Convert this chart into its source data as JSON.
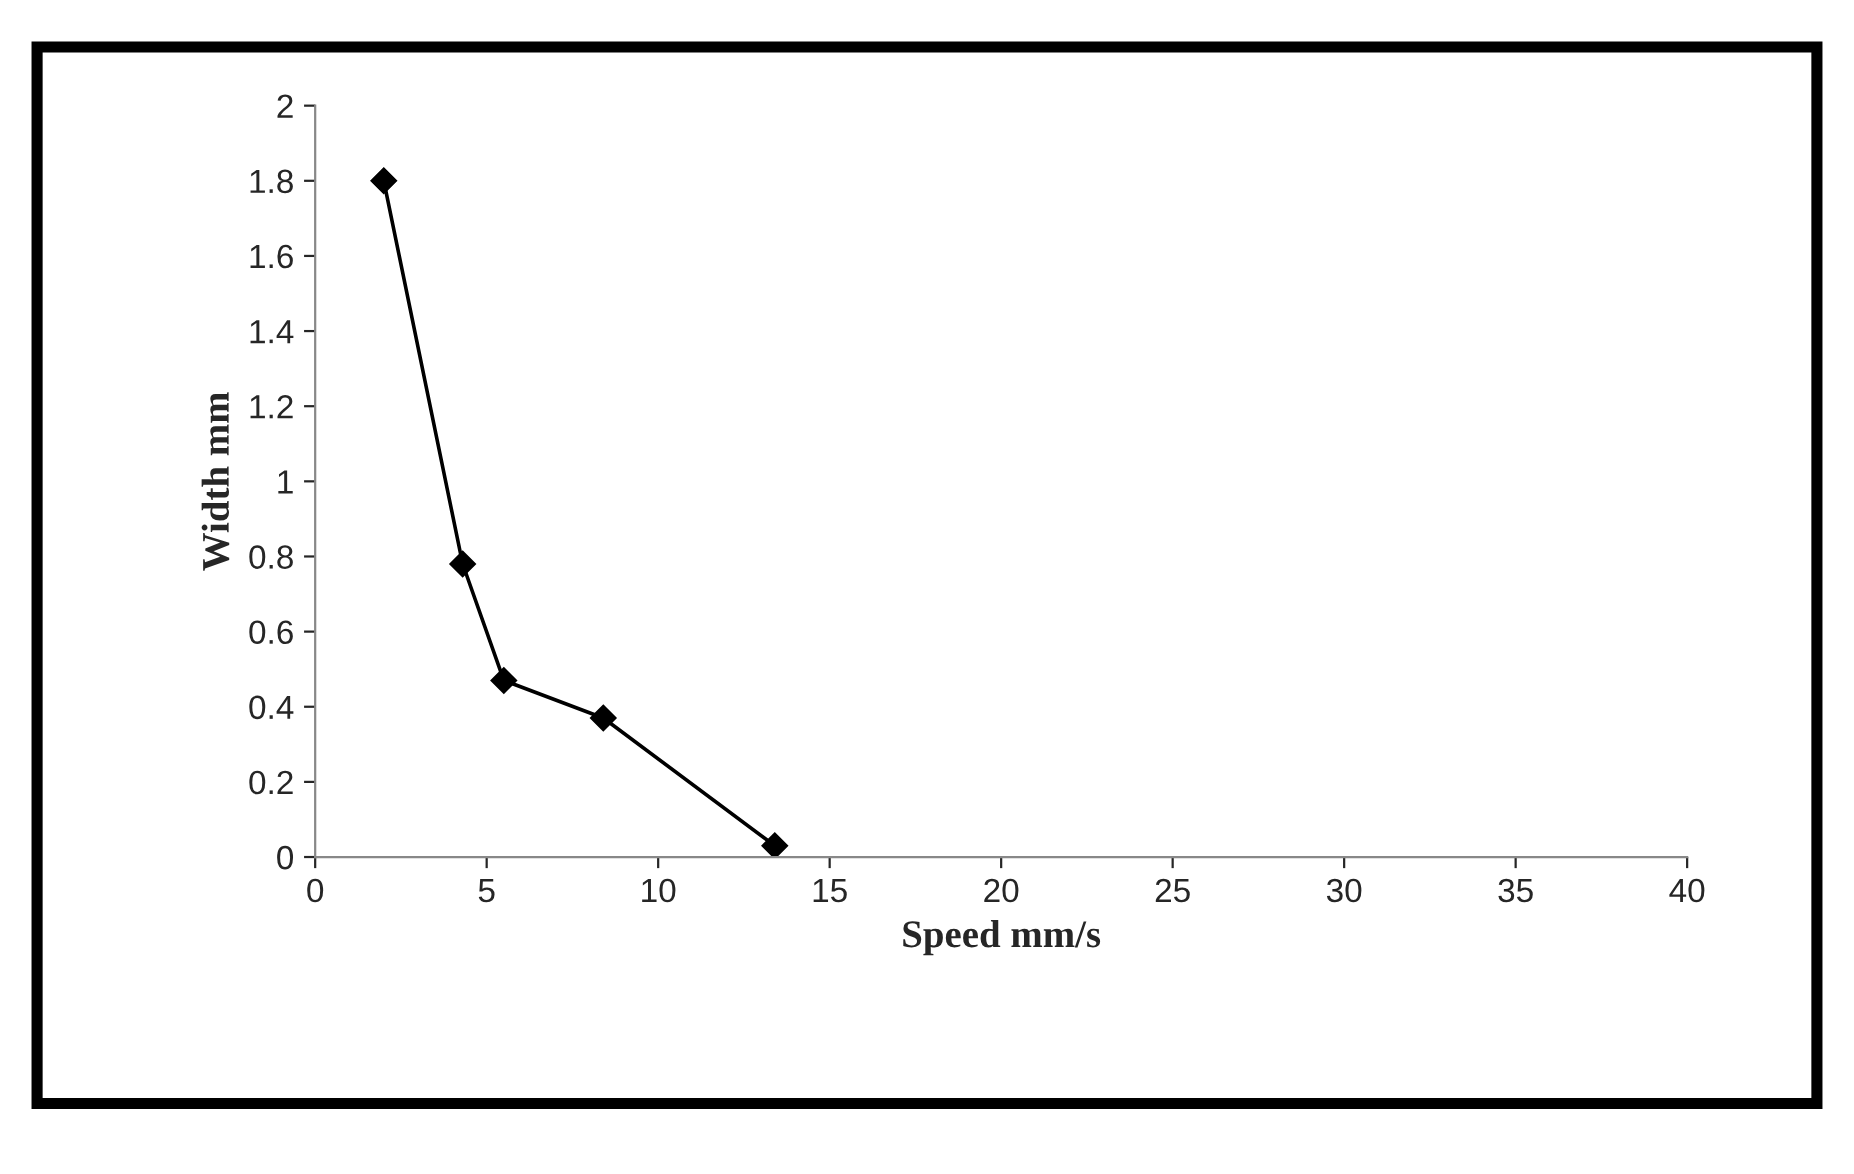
{
  "chart_data": {
    "type": "line",
    "xlabel": "Speed mm/s",
    "ylabel": "Width mm",
    "x": [
      2,
      4.3,
      5.5,
      8.4,
      13.4
    ],
    "series": [
      {
        "color": "#000000",
        "values": [
          1.8,
          0.78,
          0.47,
          0.37,
          0.03
        ]
      }
    ],
    "xlim": [
      0,
      40
    ],
    "xticks": [
      0,
      5,
      10,
      15,
      20,
      25,
      30,
      35,
      40
    ],
    "ylim": [
      0,
      2
    ],
    "yticks": [
      0,
      0.2,
      0.4,
      0.6,
      0.8,
      1,
      1.2,
      1.4,
      1.6,
      1.8,
      2
    ],
    "grid": false,
    "legend": false,
    "marker": "diamond",
    "line_style": "solid"
  }
}
